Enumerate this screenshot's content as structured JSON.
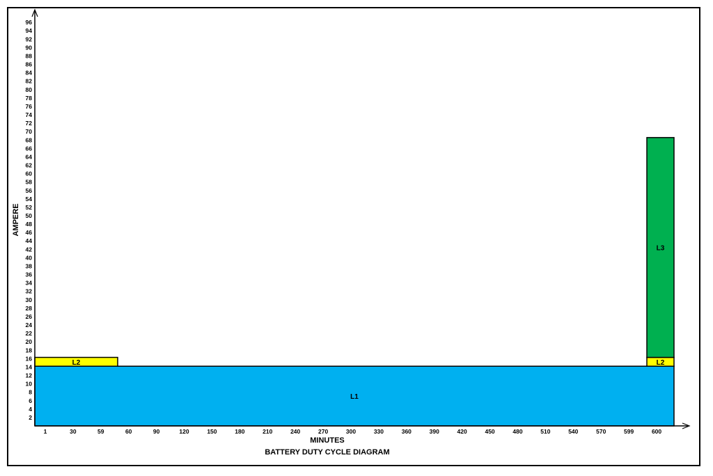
{
  "chart_data": {
    "type": "bar",
    "title": "BATTERY DUTY CYCLE DIAGRAM",
    "xlabel": "MINUTES",
    "ylabel": "AMPERE",
    "x_ticks": [
      "1",
      "30",
      "59",
      "60",
      "90",
      "120",
      "150",
      "180",
      "210",
      "240",
      "270",
      "300",
      "330",
      "360",
      "390",
      "420",
      "450",
      "480",
      "510",
      "540",
      "570",
      "599",
      "600"
    ],
    "y_ticks": [
      2,
      4,
      6,
      8,
      10,
      12,
      14,
      16,
      18,
      20,
      22,
      24,
      26,
      28,
      30,
      32,
      34,
      36,
      38,
      40,
      42,
      44,
      46,
      48,
      50,
      52,
      54,
      56,
      58,
      60,
      62,
      64,
      66,
      68,
      70,
      72,
      74,
      76,
      78,
      80,
      82,
      84,
      86,
      88,
      90,
      92,
      94,
      96
    ],
    "ylim": [
      0,
      100
    ],
    "grid": false,
    "segments": [
      {
        "label": "L1",
        "x_start": 0,
        "x_end": 600,
        "y_bottom": 0,
        "y_top": 14.2,
        "color": "#00b0f0"
      },
      {
        "label": "L2",
        "x_start": 0,
        "x_end": 59,
        "y_bottom": 14.2,
        "y_top": 16.3,
        "color": "#ffff00"
      },
      {
        "label": "L2",
        "x_start": 599,
        "x_end": 600,
        "y_bottom": 14.2,
        "y_top": 16.3,
        "color": "#ffff00"
      },
      {
        "label": "L3",
        "x_start": 599,
        "x_end": 600,
        "y_bottom": 16.3,
        "y_top": 68.6,
        "color": "#00b050"
      }
    ]
  }
}
